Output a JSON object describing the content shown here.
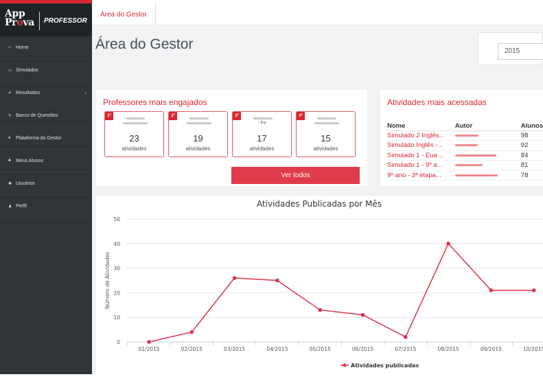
{
  "brand": {
    "line1": "App",
    "line2_a": "Pr",
    "line2_o": "o",
    "line2_b": "va",
    "role": "PROFESSOR"
  },
  "sidebar": {
    "items": [
      {
        "label": "Home",
        "icon": "home-icon",
        "glyph": "⌂"
      },
      {
        "label": "Simulados",
        "icon": "laptop-icon",
        "glyph": "▭"
      },
      {
        "label": "Resultados",
        "icon": "check-icon",
        "glyph": "✔",
        "has_chevron": true
      },
      {
        "label": "Banco de Questões",
        "icon": "edit-icon",
        "glyph": "✎"
      },
      {
        "label": "Plataforma do Gestor",
        "icon": "dashboard-icon",
        "glyph": "●"
      },
      {
        "label": "Meus Alunos",
        "icon": "users-icon",
        "glyph": "♣"
      },
      {
        "label": "Usuários",
        "icon": "gear-icon",
        "glyph": "✱"
      },
      {
        "label": "Perfil",
        "icon": "user-icon",
        "glyph": "♟"
      }
    ]
  },
  "breadcrumb": {
    "label": "Área do Gestor"
  },
  "page": {
    "title": "Área do Gestor",
    "year": "2015"
  },
  "professors": {
    "title": "Professores mais engajados",
    "unit": "atividades",
    "cards": [
      {
        "rank": "1º",
        "count": "23"
      },
      {
        "rank": "2º",
        "count": "19"
      },
      {
        "rank": "3º",
        "count": "17",
        "suffix": "- Fe"
      },
      {
        "rank": "4º",
        "count": "15"
      }
    ],
    "button": "Ver todos"
  },
  "activities": {
    "title": "Atividades mais acessadas",
    "columns": [
      "Nome",
      "Autor",
      "Alunos"
    ],
    "rows": [
      {
        "name": "Simulado 2 Inglês...",
        "students": "98"
      },
      {
        "name": "Simulado Inglês -...",
        "students": "92"
      },
      {
        "name": "Simulado 1 - Eua ...",
        "students": "84"
      },
      {
        "name": "Simulado 1 - 9º a...",
        "students": "81"
      },
      {
        "name": "9º ano - 3ª etapa...",
        "students": "78"
      }
    ]
  },
  "chart_data": {
    "type": "line",
    "title": "Atividades Publicadas por Mês",
    "ylabel": "Número de Atividades",
    "xlabel": "",
    "ylim": [
      0,
      50
    ],
    "yticks": [
      "0",
      "10",
      "20",
      "30",
      "40",
      "50"
    ],
    "categories": [
      "01/2015",
      "02/2015",
      "03/2015",
      "04/2015",
      "05/2015",
      "06/2015",
      "07/2015",
      "08/2015",
      "09/2015",
      "10/2015"
    ],
    "series": [
      {
        "name": "Atividades publicadas",
        "values": [
          0,
          4,
          26,
          25,
          13,
          11,
          2,
          40,
          21,
          21
        ],
        "color": "#d9344a"
      }
    ],
    "legend": "bottom",
    "grid": true
  }
}
